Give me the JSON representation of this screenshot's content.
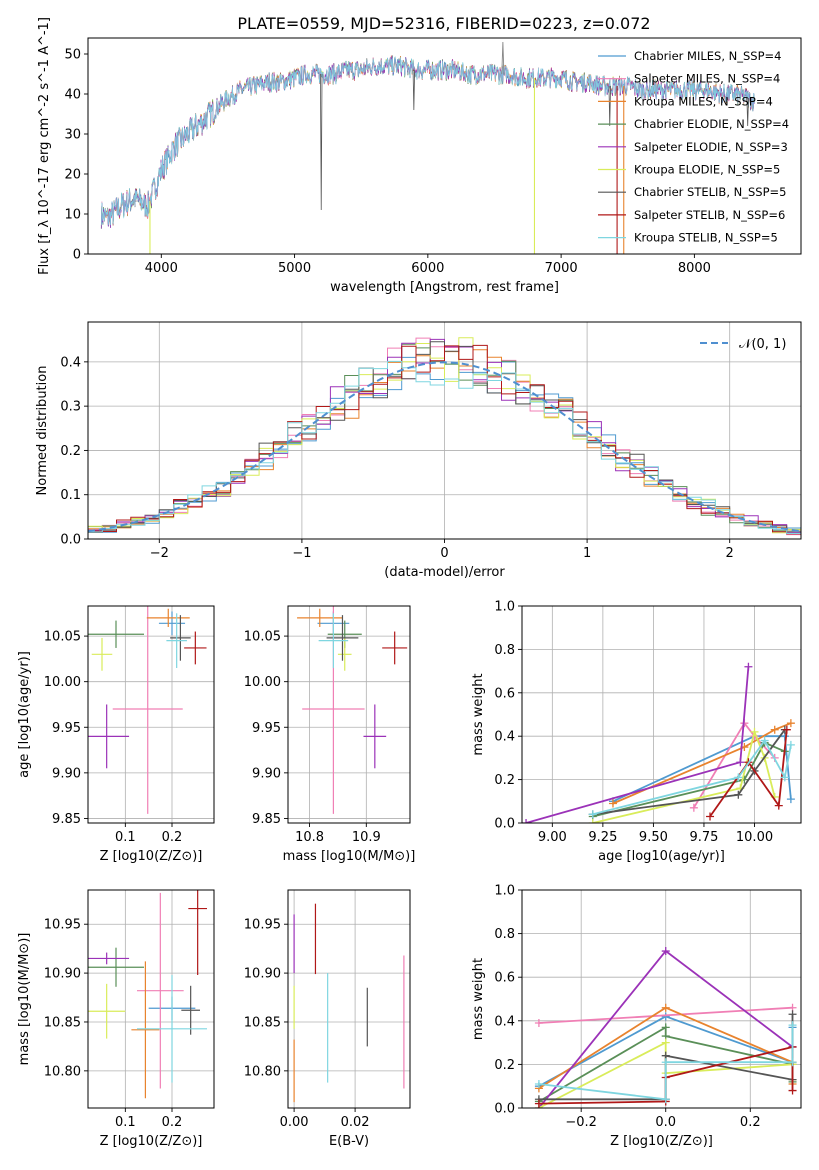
{
  "title": "PLATE=0559, MJD=52316, FIBERID=0223, z=0.072",
  "colors": {
    "Chabrier MILES": "#4f9ad0",
    "Salpeter MILES": "#f07fb5",
    "Kroupa MILES": "#e8832e",
    "Chabrier ELODIE": "#5a8f58",
    "Salpeter ELODIE": "#9b32b8",
    "Kroupa ELODIE": "#d9ec5a",
    "Chabrier STELIB": "#555555",
    "Salpeter STELIB": "#b01818",
    "Kroupa STELIB": "#7fd6e0"
  },
  "chart_data": [
    {
      "id": "spectrum",
      "type": "line",
      "title": "PLATE=0559, MJD=52316, FIBERID=0223, z=0.072",
      "xlabel": "wavelength [Angstrom, rest frame]",
      "ylabel": "Flux [f_λ 10^-17 erg cm^-2 s^-1 A^-1]",
      "xlim": [
        3450,
        8800
      ],
      "ylim": [
        0,
        54
      ],
      "xticks": [
        4000,
        5000,
        6000,
        7000,
        8000
      ],
      "yticks": [
        0,
        10,
        20,
        30,
        40,
        50
      ],
      "legend_position": "top-right",
      "legend": [
        "Chabrier MILES, N_SSP=4",
        "Salpeter MILES, N_SSP=4",
        "Kroupa MILES, N_SSP=4",
        "Chabrier ELODIE, N_SSP=4",
        "Salpeter ELODIE, N_SSP=3",
        "Kroupa ELODIE, N_SSP=5",
        "Chabrier STELIB, N_SSP=5",
        "Salpeter STELIB, N_SSP=6",
        "Kroupa STELIB, N_SSP=5"
      ],
      "continuum": {
        "x": [
          3550,
          3600,
          3700,
          3800,
          3900,
          4000,
          4100,
          4200,
          4300,
          4400,
          4500,
          4600,
          4700,
          4800,
          4900,
          5000,
          5100,
          5200,
          5300,
          5400,
          5500,
          5600,
          5700,
          5800,
          5900,
          6000,
          6100,
          6200,
          6300,
          6400,
          6500,
          6600,
          6700,
          6800,
          6900,
          7000,
          7100,
          7200,
          7300,
          7400,
          7500,
          7600,
          7700,
          7800,
          7900,
          8000,
          8100,
          8200,
          8300,
          8400,
          8450
        ],
        "y": [
          10,
          9,
          12,
          14,
          12,
          21,
          27,
          30,
          33,
          36,
          39,
          41,
          42,
          43,
          43,
          44,
          45,
          45,
          45,
          46,
          46,
          47,
          47,
          47,
          46,
          46,
          46,
          46,
          45,
          45,
          45,
          45,
          44,
          44,
          44,
          44,
          43,
          43,
          42,
          42,
          42,
          41,
          41,
          41,
          41,
          41,
          41,
          40,
          40,
          39,
          38
        ]
      },
      "features": {
        "cutoff_dips": [
          {
            "x": 3915,
            "series": "Kroupa ELODIE"
          },
          {
            "x": 6800,
            "series": "Kroupa ELODIE"
          },
          {
            "x": 7420,
            "series": "Salpeter STELIB"
          },
          {
            "x": 7470,
            "series": "Kroupa MILES"
          }
        ],
        "absorption": [
          {
            "x": 5200,
            "y": 11
          },
          {
            "x": 5895,
            "y": 36
          },
          {
            "x": 7365,
            "y": 32
          },
          {
            "x": 8400,
            "y": 32
          }
        ],
        "emission": [
          {
            "x": 6563,
            "y": 53
          }
        ]
      }
    },
    {
      "id": "residuals",
      "type": "line",
      "xlabel": "(data-model)/error",
      "ylabel": "Normed distribution",
      "xlim": [
        -2.5,
        2.5
      ],
      "ylim": [
        0,
        0.49
      ],
      "xticks": [
        -2,
        -1,
        0,
        1,
        2
      ],
      "yticks": [
        0.0,
        0.1,
        0.2,
        0.3,
        0.4
      ],
      "grid": true,
      "legend_position": "top-right",
      "legend": [
        "𝒩(0, 1)"
      ],
      "reference_curve": "normal pdf, mean 0, sigma 1, dashed",
      "histogram": {
        "bin_width": 0.1,
        "x_start": -2.5,
        "x_end": 2.5,
        "style": "step"
      }
    },
    {
      "id": "age-vs-Z",
      "type": "scatter",
      "xlabel": "Z [log10(Z/Z⊙)]",
      "ylabel": "age [log10(age/yr)]",
      "xlim": [
        0.02,
        0.29
      ],
      "ylim": [
        9.845,
        10.083
      ],
      "xticks": [
        0.1,
        0.2
      ],
      "yticks": [
        9.85,
        9.9,
        9.95,
        10.0,
        10.05
      ],
      "grid": true,
      "points": [
        {
          "series": "Chabrier MILES",
          "x": 0.2,
          "y": 10.064,
          "xerr": 0.028,
          "yerr": 0.013
        },
        {
          "series": "Salpeter MILES",
          "x": 0.148,
          "y": 9.97,
          "xerr": 0.075,
          "yerr": 0.115
        },
        {
          "series": "Kroupa MILES",
          "x": 0.192,
          "y": 10.07,
          "xerr": 0.046,
          "yerr": 0.01
        },
        {
          "series": "Chabrier ELODIE",
          "x": 0.08,
          "y": 10.052,
          "xerr": 0.06,
          "yerr": 0.015
        },
        {
          "series": "Salpeter ELODIE",
          "x": 0.06,
          "y": 9.94,
          "xerr": 0.048,
          "yerr": 0.035
        },
        {
          "series": "Kroupa ELODIE",
          "x": 0.05,
          "y": 10.03,
          "xerr": 0.022,
          "yerr": 0.018
        },
        {
          "series": "Chabrier STELIB",
          "x": 0.218,
          "y": 10.048,
          "xerr": 0.022,
          "yerr": 0.025
        },
        {
          "series": "Salpeter STELIB",
          "x": 0.25,
          "y": 10.037,
          "xerr": 0.024,
          "yerr": 0.018
        },
        {
          "series": "Kroupa STELIB",
          "x": 0.21,
          "y": 10.045,
          "xerr": 0.022,
          "yerr": 0.03
        }
      ]
    },
    {
      "id": "age-vs-mass",
      "type": "scatter",
      "xlabel": "mass [log10(M/M⊙)]",
      "ylabel": "",
      "xlim": [
        10.762,
        10.977
      ],
      "ylim": [
        9.845,
        10.083
      ],
      "xticks": [
        10.8,
        10.9
      ],
      "yticks": [
        9.85,
        9.9,
        9.95,
        10.0,
        10.05
      ],
      "grid": true,
      "points": [
        {
          "series": "Chabrier MILES",
          "x": 10.842,
          "y": 10.064,
          "xerr": 0.028,
          "yerr": 0.013
        },
        {
          "series": "Salpeter MILES",
          "x": 10.842,
          "y": 9.97,
          "xerr": 0.055,
          "yerr": 0.115
        },
        {
          "series": "Kroupa MILES",
          "x": 10.818,
          "y": 10.07,
          "xerr": 0.04,
          "yerr": 0.01
        },
        {
          "series": "Chabrier ELODIE",
          "x": 10.862,
          "y": 10.052,
          "xerr": 0.03,
          "yerr": 0.015
        },
        {
          "series": "Salpeter ELODIE",
          "x": 10.915,
          "y": 9.94,
          "xerr": 0.02,
          "yerr": 0.035
        },
        {
          "series": "Kroupa ELODIE",
          "x": 10.862,
          "y": 10.03,
          "xerr": 0.012,
          "yerr": 0.018
        },
        {
          "series": "Chabrier STELIB",
          "x": 10.858,
          "y": 10.048,
          "xerr": 0.028,
          "yerr": 0.025
        },
        {
          "series": "Salpeter STELIB",
          "x": 10.95,
          "y": 10.037,
          "xerr": 0.022,
          "yerr": 0.018
        },
        {
          "series": "Kroupa STELIB",
          "x": 10.842,
          "y": 10.045,
          "xerr": 0.026,
          "yerr": 0.03
        }
      ]
    },
    {
      "id": "weight-vs-age",
      "type": "line",
      "xlabel": "age [log10(age/yr)]",
      "ylabel": "mass weight",
      "xlim": [
        8.85,
        10.23
      ],
      "ylim": [
        0,
        1.0
      ],
      "xticks": [
        9.0,
        9.25,
        9.5,
        9.75,
        10.0
      ],
      "xtick_labels": [
        "9.00",
        "9.25",
        "9.50",
        "9.75",
        "10.00"
      ],
      "yticks": [
        0.0,
        0.2,
        0.4,
        0.6,
        0.8,
        1.0
      ],
      "grid": true,
      "series": [
        {
          "name": "Chabrier MILES",
          "x": [
            9.3,
            10.0,
            10.15,
            10.18
          ],
          "y": [
            0.1,
            0.4,
            0.4,
            0.11
          ]
        },
        {
          "name": "Salpeter MILES",
          "x": [
            9.7,
            9.95,
            10.0,
            10.1
          ],
          "y": [
            0.07,
            0.46,
            0.4,
            0.3
          ]
        },
        {
          "name": "Kroupa MILES",
          "x": [
            9.3,
            9.95,
            10.1,
            10.18
          ],
          "y": [
            0.09,
            0.35,
            0.43,
            0.46
          ]
        },
        {
          "name": "Chabrier ELODIE",
          "x": [
            9.2,
            9.95,
            10.05,
            10.15
          ],
          "y": [
            0.03,
            0.2,
            0.37,
            0.33
          ]
        },
        {
          "name": "Salpeter ELODIE",
          "x": [
            8.87,
            9.93,
            9.97
          ],
          "y": [
            0.0,
            0.28,
            0.72
          ]
        },
        {
          "name": "Kroupa ELODIE",
          "x": [
            9.2,
            9.93,
            10.0,
            10.05,
            10.1
          ],
          "y": [
            0.0,
            0.16,
            0.42,
            0.3,
            0.12
          ]
        },
        {
          "name": "Chabrier STELIB",
          "x": [
            9.2,
            9.92,
            10.0,
            10.15
          ],
          "y": [
            0.04,
            0.13,
            0.24,
            0.43
          ]
        },
        {
          "name": "Salpeter STELIB",
          "x": [
            9.78,
            9.97,
            10.12,
            10.16
          ],
          "y": [
            0.03,
            0.28,
            0.08,
            0.43
          ]
        },
        {
          "name": "Kroupa STELIB",
          "x": [
            9.2,
            9.92,
            10.05,
            10.15,
            10.18
          ],
          "y": [
            0.04,
            0.21,
            0.38,
            0.21,
            0.36
          ]
        }
      ]
    },
    {
      "id": "mass-vs-Z",
      "type": "scatter",
      "xlabel": "Z [log10(Z/Z⊙)]",
      "ylabel": "mass [log10(M/M⊙)]",
      "xlim": [
        0.02,
        0.29
      ],
      "ylim": [
        10.762,
        10.985
      ],
      "xticks": [
        0.1,
        0.2
      ],
      "yticks": [
        10.8,
        10.85,
        10.9,
        10.95
      ],
      "grid": true,
      "points": [
        {
          "series": "Chabrier MILES",
          "x": 0.2,
          "y": 10.864,
          "xerr": 0.05,
          "yerr": 0.012
        },
        {
          "series": "Salpeter MILES",
          "x": 0.175,
          "y": 10.882,
          "xerr": 0.05,
          "yerr": 0.1
        },
        {
          "series": "Kroupa MILES",
          "x": 0.143,
          "y": 10.842,
          "xerr": 0.03,
          "yerr": 0.07
        },
        {
          "series": "Chabrier ELODIE",
          "x": 0.08,
          "y": 10.906,
          "xerr": 0.06,
          "yerr": 0.02
        },
        {
          "series": "Salpeter ELODIE",
          "x": 0.06,
          "y": 10.915,
          "xerr": 0.048,
          "yerr": 0.006
        },
        {
          "series": "Kroupa ELODIE",
          "x": 0.06,
          "y": 10.861,
          "xerr": 0.04,
          "yerr": 0.028
        },
        {
          "series": "Chabrier STELIB",
          "x": 0.24,
          "y": 10.862,
          "xerr": 0.02,
          "yerr": 0.025
        },
        {
          "series": "Salpeter STELIB",
          "x": 0.255,
          "y": 10.966,
          "xerr": 0.02,
          "yerr": 0.068
        },
        {
          "series": "Kroupa STELIB",
          "x": 0.2,
          "y": 10.843,
          "xerr": 0.075,
          "yerr": 0.055
        }
      ]
    },
    {
      "id": "mass-vs-ebv",
      "type": "scatter",
      "xlabel": "E(B-V)",
      "ylabel": "",
      "xlim": [
        -0.002,
        0.038
      ],
      "ylim": [
        10.762,
        10.985
      ],
      "xticks": [
        0.0,
        0.02
      ],
      "xtick_labels": [
        "0.00",
        "0.02"
      ],
      "yticks": [
        10.8,
        10.85,
        10.9,
        10.95
      ],
      "grid": true,
      "points": [
        {
          "series": "Salpeter ELODIE",
          "x": 0.0,
          "y": 10.93,
          "xerr": 0,
          "yerr": 0.03
        },
        {
          "series": "Kroupa MILES",
          "x": 0.0,
          "y": 10.8,
          "xerr": 0,
          "yerr": 0.032
        },
        {
          "series": "Kroupa ELODIE",
          "x": 0.0,
          "y": 10.865,
          "xerr": 0,
          "yerr": 0.022
        },
        {
          "series": "Salpeter STELIB",
          "x": 0.007,
          "y": 10.935,
          "xerr": 0,
          "yerr": 0.036
        },
        {
          "series": "Kroupa STELIB",
          "x": 0.011,
          "y": 10.844,
          "xerr": 0,
          "yerr": 0.056
        },
        {
          "series": "Chabrier STELIB",
          "x": 0.024,
          "y": 10.855,
          "xerr": 0,
          "yerr": 0.03
        },
        {
          "series": "Salpeter MILES",
          "x": 0.036,
          "y": 10.85,
          "xerr": 0,
          "yerr": 0.068
        }
      ]
    },
    {
      "id": "weight-vs-Z",
      "type": "line",
      "xlabel": "Z [log10(Z/Z⊙)]",
      "ylabel": "mass weight",
      "xlim": [
        -0.34,
        0.32
      ],
      "ylim": [
        0,
        1.0
      ],
      "xticks": [
        -0.2,
        0.0,
        0.2
      ],
      "xtick_labels": [
        "−0.2",
        "0.0",
        "0.2"
      ],
      "yticks": [
        0.0,
        0.2,
        0.4,
        0.6,
        0.8,
        1.0
      ],
      "grid": true,
      "series": [
        {
          "name": "Chabrier MILES",
          "x": [
            -0.3,
            0.0,
            0.3,
            0.3
          ],
          "y": [
            0.1,
            0.42,
            0.21,
            0.37
          ]
        },
        {
          "name": "Salpeter MILES",
          "x": [
            -0.3,
            0.3
          ],
          "y": [
            0.39,
            0.46
          ]
        },
        {
          "name": "Kroupa MILES",
          "x": [
            -0.3,
            0.0,
            0.3,
            0.3
          ],
          "y": [
            0.09,
            0.46,
            0.21,
            0.11
          ]
        },
        {
          "name": "Chabrier ELODIE",
          "x": [
            -0.3,
            0.0,
            0.0,
            0.3,
            0.3
          ],
          "y": [
            0.03,
            0.37,
            0.33,
            0.2,
            0.12
          ]
        },
        {
          "name": "Salpeter ELODIE",
          "x": [
            -0.3,
            0.0,
            0.3
          ],
          "y": [
            0.0,
            0.72,
            0.28
          ]
        },
        {
          "name": "Kroupa ELODIE",
          "x": [
            -0.3,
            0.0,
            0.0,
            0.3,
            0.3
          ],
          "y": [
            0.0,
            0.3,
            0.16,
            0.2,
            0.13
          ]
        },
        {
          "name": "Chabrier STELIB",
          "x": [
            -0.3,
            0.0,
            0.0,
            0.3,
            0.3
          ],
          "y": [
            0.04,
            0.04,
            0.24,
            0.13,
            0.43
          ]
        },
        {
          "name": "Salpeter STELIB",
          "x": [
            -0.3,
            0.0,
            0.0,
            0.3,
            0.3
          ],
          "y": [
            0.02,
            0.03,
            0.14,
            0.28,
            0.08
          ]
        },
        {
          "name": "Kroupa STELIB",
          "x": [
            -0.3,
            0.0,
            0.0,
            0.3,
            0.3
          ],
          "y": [
            0.11,
            0.04,
            0.21,
            0.21,
            0.38
          ]
        }
      ]
    }
  ]
}
